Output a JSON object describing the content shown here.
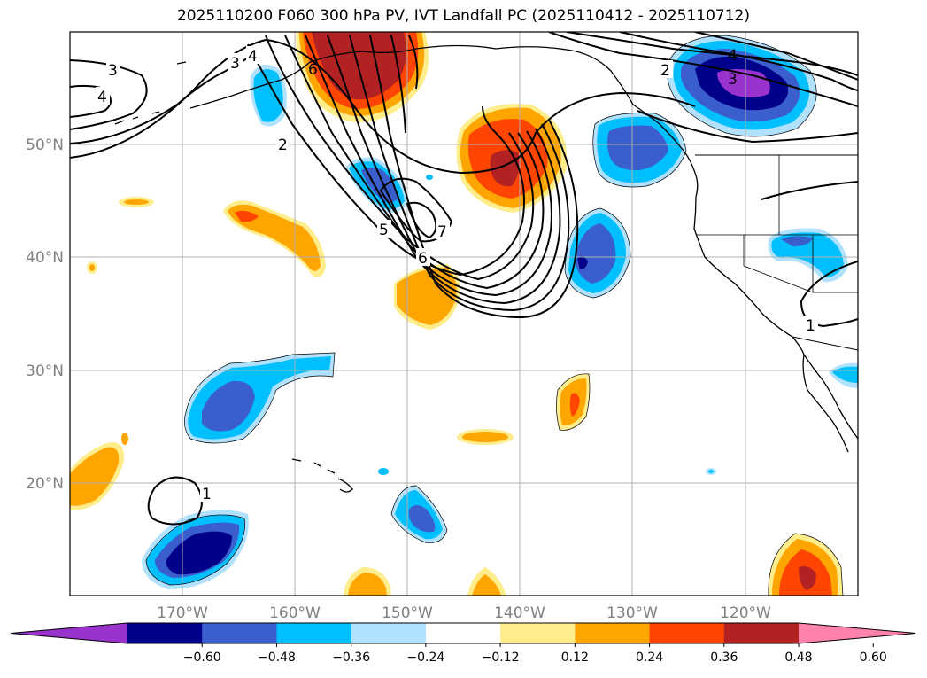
{
  "title": "2025110200 F060 300 hPa PV, IVT Landfall PC (2025110412 - 2025110712)",
  "map": {
    "lat_ticks": [
      {
        "value": 50,
        "label": "50°N"
      },
      {
        "value": 40,
        "label": "40°N"
      },
      {
        "value": 30,
        "label": "30°N"
      },
      {
        "value": 20,
        "label": "20°N"
      }
    ],
    "lon_ticks": [
      {
        "value": -170,
        "label": "170°W"
      },
      {
        "value": -160,
        "label": "160°W"
      },
      {
        "value": -150,
        "label": "150°W"
      },
      {
        "value": -140,
        "label": "140°W"
      },
      {
        "value": -130,
        "label": "130°W"
      },
      {
        "value": -120,
        "label": "120°W"
      }
    ],
    "extent": {
      "lon_min": -180,
      "lon_max": -110,
      "lat_min": 10,
      "lat_max": 60
    },
    "grid": true,
    "contour_labels": [
      "3",
      "4",
      "3",
      "4",
      "6",
      "2",
      "5",
      "7",
      "6",
      "2",
      "3",
      "4",
      "1",
      "1"
    ]
  },
  "colorbar": {
    "labels": [
      "−0.60",
      "−0.48",
      "−0.36",
      "−0.24",
      "−0.12",
      "0.12",
      "0.24",
      "0.36",
      "0.48",
      "0.60"
    ],
    "bins": [
      {
        "color": "#9a32cd"
      },
      {
        "color": "#00008b"
      },
      {
        "color": "#3a5fcd"
      },
      {
        "color": "#00bfff"
      },
      {
        "color": "#b0e2ff"
      },
      {
        "color": "#ffffff"
      },
      {
        "color": "#ffec8b"
      },
      {
        "color": "#ffa500"
      },
      {
        "color": "#ff4500"
      },
      {
        "color": "#b22222"
      },
      {
        "color": "#ff82ab"
      }
    ]
  },
  "chart_data": {
    "type": "map",
    "title": "2025110200 F060 300 hPa PV, IVT Landfall PC (2025110412 - 2025110712)",
    "fill_variable": "IVT Landfall PC",
    "contour_variable": "300 hPa PV",
    "fill_levels": [
      -0.6,
      -0.48,
      -0.36,
      -0.24,
      -0.12,
      0.12,
      0.24,
      0.36,
      0.48,
      0.6
    ],
    "contour_levels": [
      1,
      2,
      3,
      4,
      5,
      6,
      7
    ],
    "extent_lon": [
      -180,
      -110
    ],
    "extent_lat": [
      10,
      60
    ]
  }
}
